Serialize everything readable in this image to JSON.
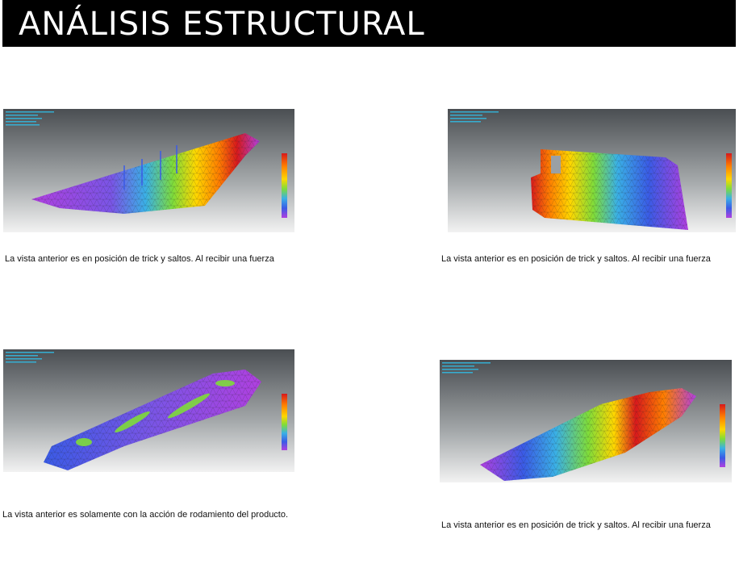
{
  "page": {
    "title": "ANÁLISIS ESTRUCTURAL"
  },
  "panels": [
    {
      "caption": "La vista anterior es en posición de trick y saltos. Al recibir una fuerza"
    },
    {
      "caption": "La vista anterior es en posición de trick y saltos. Al recibir una fuerza"
    },
    {
      "caption": "La vista anterior es solamente con la acción de rodamiento del producto."
    },
    {
      "caption": "La vista anterior es en posición de trick y saltos. Al recibir una fuerza"
    }
  ],
  "colors": {
    "title_bar": "#000000",
    "title_text": "#ffffff",
    "stress_scale": [
      "#d7191c",
      "#ff7f00",
      "#ffd700",
      "#7fdc3a",
      "#3ab0e6",
      "#3a5be6",
      "#b040e0"
    ]
  }
}
